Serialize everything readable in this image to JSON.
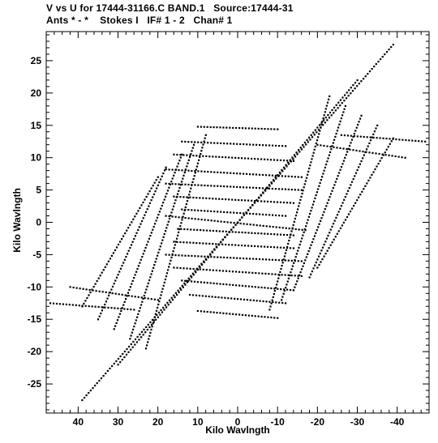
{
  "header": {
    "line1": "V vs U for 17444-31166.C BAND.1   Source:17444-31",
    "line2": "Ants * - *    Stokes I   IF# 1 - 2   Chan# 1"
  },
  "chart_data": {
    "type": "scatter",
    "xlabel": "Kilo Wavlngth",
    "ylabel": "Kilo Wavlngth",
    "xlim": [
      48,
      -48
    ],
    "ylim": [
      -29.5,
      29.5
    ],
    "xticks": [
      40,
      30,
      20,
      10,
      0,
      -10,
      -20,
      -30,
      -40
    ],
    "xtick_labels": [
      "40",
      "30",
      "20",
      "10",
      "0",
      "-10",
      "-20",
      "-30",
      "-40"
    ],
    "yticks": [
      25,
      20,
      15,
      10,
      5,
      0,
      -5,
      -10,
      -15,
      -20,
      -25
    ],
    "ytick_labels": [
      "25",
      "20",
      "15",
      "10",
      "5",
      "0",
      "-5",
      "-10",
      "-15",
      "-20",
      "-25"
    ],
    "grid": false,
    "marker_color": "#000000",
    "tracks": [
      {
        "u1": 10,
        "v1": 14.8,
        "u2": -10,
        "v2": 14.4
      },
      {
        "u1": 14,
        "v1": 12.5,
        "u2": -12,
        "v2": 11.8
      },
      {
        "u1": 16,
        "v1": 10.5,
        "u2": -14,
        "v2": 9.5
      },
      {
        "u1": 18,
        "v1": 8.2,
        "u2": -16,
        "v2": 7.0
      },
      {
        "u1": 18,
        "v1": 6.0,
        "u2": -16,
        "v2": 5.0
      },
      {
        "u1": 16,
        "v1": 4.0,
        "u2": -14,
        "v2": 3.0
      },
      {
        "u1": 14,
        "v1": 2.0,
        "u2": -12,
        "v2": 1.0
      },
      {
        "u1": 18,
        "v1": 1.0,
        "u2": -17,
        "v2": -1.2
      },
      {
        "u1": 15,
        "v1": -1.0,
        "u2": -14,
        "v2": -2.0
      },
      {
        "u1": 16,
        "v1": -3.0,
        "u2": -14,
        "v2": -4.0
      },
      {
        "u1": 18,
        "v1": -5.0,
        "u2": -16,
        "v2": -6.0
      },
      {
        "u1": 16,
        "v1": -7.0,
        "u2": -16,
        "v2": -8.3
      },
      {
        "u1": 14,
        "v1": -9.0,
        "u2": -14,
        "v2": -10.5
      },
      {
        "u1": 12,
        "v1": -11.2,
        "u2": -12,
        "v2": -12.5
      },
      {
        "u1": 10,
        "v1": -13.7,
        "u2": -10,
        "v2": -14.8
      },
      {
        "u1": 39,
        "v1": -13.0,
        "u2": 20,
        "v2": 7.0
      },
      {
        "u1": 35,
        "v1": -15.0,
        "u2": 18,
        "v2": 8.5
      },
      {
        "u1": 31,
        "v1": -16.5,
        "u2": 14,
        "v2": 10.5
      },
      {
        "u1": 27,
        "v1": -18.0,
        "u2": 11,
        "v2": 12.0
      },
      {
        "u1": 23,
        "v1": -19.5,
        "u2": 8,
        "v2": 13.5
      },
      {
        "u1": 47,
        "v1": -12.5,
        "u2": 26,
        "v2": -13.5
      },
      {
        "u1": 42,
        "v1": -10.0,
        "u2": 20,
        "v2": -12.0
      },
      {
        "u1": -39,
        "v1": 13.0,
        "u2": -20,
        "v2": -7.0
      },
      {
        "u1": -35,
        "v1": 15.0,
        "u2": -18,
        "v2": -8.5
      },
      {
        "u1": -31,
        "v1": 16.5,
        "u2": -14,
        "v2": -10.5
      },
      {
        "u1": -27,
        "v1": 18.0,
        "u2": -11,
        "v2": -12.0
      },
      {
        "u1": -23,
        "v1": 19.5,
        "u2": -8,
        "v2": -13.5
      },
      {
        "u1": -47,
        "v1": 12.5,
        "u2": -26,
        "v2": 13.5
      },
      {
        "u1": -42,
        "v1": 10.0,
        "u2": -20,
        "v2": 12.0
      },
      {
        "u1": 39,
        "v1": -27.5,
        "u2": 0,
        "v2": 0
      },
      {
        "u1": -39,
        "v1": 27.5,
        "u2": 0,
        "v2": 0
      },
      {
        "u1": 30,
        "v1": -22.0,
        "u2": 0,
        "v2": 0
      },
      {
        "u1": -30,
        "v1": 22.0,
        "u2": 0,
        "v2": 0
      }
    ]
  }
}
